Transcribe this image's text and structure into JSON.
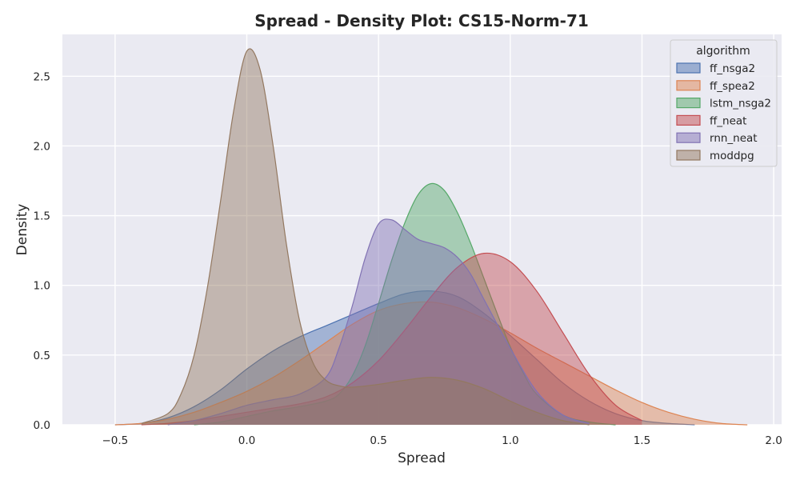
{
  "chart_data": {
    "type": "area",
    "title": "Spread - Density Plot: CS15-Norm-71",
    "xlabel": "Spread",
    "ylabel": "Density",
    "xlim": [
      -0.7,
      2.03
    ],
    "ylim": [
      0,
      2.8
    ],
    "x_ticks": [
      -0.5,
      0.0,
      0.5,
      1.0,
      1.5,
      2.0
    ],
    "x_tick_labels": [
      "−0.5",
      "0.0",
      "0.5",
      "1.0",
      "1.5",
      "2.0"
    ],
    "y_ticks": [
      0.0,
      0.5,
      1.0,
      1.5,
      2.0,
      2.5
    ],
    "y_tick_labels": [
      "0.0",
      "0.5",
      "1.0",
      "1.5",
      "2.0",
      "2.5"
    ],
    "grid": true,
    "legend": {
      "title": "algorithm",
      "placement": "top-right"
    },
    "series": [
      {
        "name": "ff_nsga2",
        "color": "#4c72b0",
        "x": [
          -0.5,
          -0.4,
          -0.3,
          -0.2,
          -0.1,
          0.0,
          0.1,
          0.2,
          0.3,
          0.4,
          0.5,
          0.6,
          0.7,
          0.8,
          0.9,
          1.0,
          1.1,
          1.2,
          1.3,
          1.4,
          1.5,
          1.6,
          1.7
        ],
        "values": [
          0.0,
          0.01,
          0.05,
          0.13,
          0.25,
          0.4,
          0.53,
          0.63,
          0.71,
          0.79,
          0.87,
          0.94,
          0.96,
          0.92,
          0.8,
          0.64,
          0.47,
          0.3,
          0.17,
          0.08,
          0.03,
          0.01,
          0.0
        ]
      },
      {
        "name": "ff_spea2",
        "color": "#dd8452",
        "x": [
          -0.5,
          -0.4,
          -0.3,
          -0.2,
          -0.1,
          0.0,
          0.1,
          0.2,
          0.3,
          0.4,
          0.5,
          0.6,
          0.7,
          0.8,
          0.9,
          1.0,
          1.1,
          1.2,
          1.3,
          1.4,
          1.5,
          1.6,
          1.7,
          1.8,
          1.9
        ],
        "values": [
          0.0,
          0.01,
          0.04,
          0.09,
          0.16,
          0.24,
          0.34,
          0.46,
          0.59,
          0.72,
          0.82,
          0.87,
          0.88,
          0.84,
          0.76,
          0.66,
          0.55,
          0.45,
          0.35,
          0.25,
          0.16,
          0.09,
          0.04,
          0.01,
          0.0
        ]
      },
      {
        "name": "lstm_nsga2",
        "color": "#55a868",
        "x": [
          -0.2,
          -0.1,
          0.0,
          0.1,
          0.2,
          0.3,
          0.35,
          0.4,
          0.45,
          0.5,
          0.55,
          0.6,
          0.65,
          0.7,
          0.75,
          0.8,
          0.85,
          0.9,
          0.95,
          1.0,
          1.05,
          1.1,
          1.2,
          1.3,
          1.4
        ],
        "values": [
          0.0,
          0.02,
          0.06,
          0.1,
          0.13,
          0.17,
          0.22,
          0.35,
          0.57,
          0.87,
          1.18,
          1.45,
          1.65,
          1.73,
          1.68,
          1.52,
          1.3,
          1.05,
          0.8,
          0.56,
          0.37,
          0.22,
          0.07,
          0.02,
          0.0
        ]
      },
      {
        "name": "ff_neat",
        "color": "#c44e52",
        "x": [
          -0.4,
          -0.3,
          -0.2,
          -0.1,
          0.0,
          0.1,
          0.2,
          0.3,
          0.4,
          0.5,
          0.6,
          0.7,
          0.8,
          0.9,
          1.0,
          1.1,
          1.2,
          1.3,
          1.4,
          1.5
        ],
        "values": [
          0.0,
          0.01,
          0.03,
          0.06,
          0.09,
          0.12,
          0.15,
          0.2,
          0.3,
          0.46,
          0.68,
          0.92,
          1.13,
          1.23,
          1.17,
          0.96,
          0.66,
          0.36,
          0.14,
          0.03
        ]
      },
      {
        "name": "rnn_neat",
        "color": "#8172b3",
        "x": [
          -0.3,
          -0.2,
          -0.1,
          0.0,
          0.1,
          0.2,
          0.3,
          0.35,
          0.4,
          0.45,
          0.5,
          0.55,
          0.6,
          0.65,
          0.7,
          0.75,
          0.8,
          0.85,
          0.9,
          1.0,
          1.1,
          1.2,
          1.3
        ],
        "values": [
          0.0,
          0.03,
          0.08,
          0.14,
          0.18,
          0.22,
          0.34,
          0.55,
          0.85,
          1.2,
          1.44,
          1.47,
          1.4,
          1.33,
          1.3,
          1.27,
          1.2,
          1.08,
          0.9,
          0.55,
          0.24,
          0.07,
          0.01
        ]
      },
      {
        "name": "moddpg",
        "color": "#937860",
        "x": [
          -0.4,
          -0.3,
          -0.25,
          -0.2,
          -0.15,
          -0.1,
          -0.05,
          0.0,
          0.05,
          0.1,
          0.15,
          0.2,
          0.25,
          0.3,
          0.35,
          0.4,
          0.5,
          0.6,
          0.7,
          0.8,
          0.9,
          1.0,
          1.1,
          1.2,
          1.3
        ],
        "values": [
          0.01,
          0.08,
          0.22,
          0.5,
          0.98,
          1.6,
          2.25,
          2.68,
          2.55,
          2.0,
          1.3,
          0.75,
          0.45,
          0.32,
          0.28,
          0.27,
          0.29,
          0.32,
          0.34,
          0.32,
          0.26,
          0.17,
          0.09,
          0.03,
          0.0
        ]
      }
    ]
  }
}
